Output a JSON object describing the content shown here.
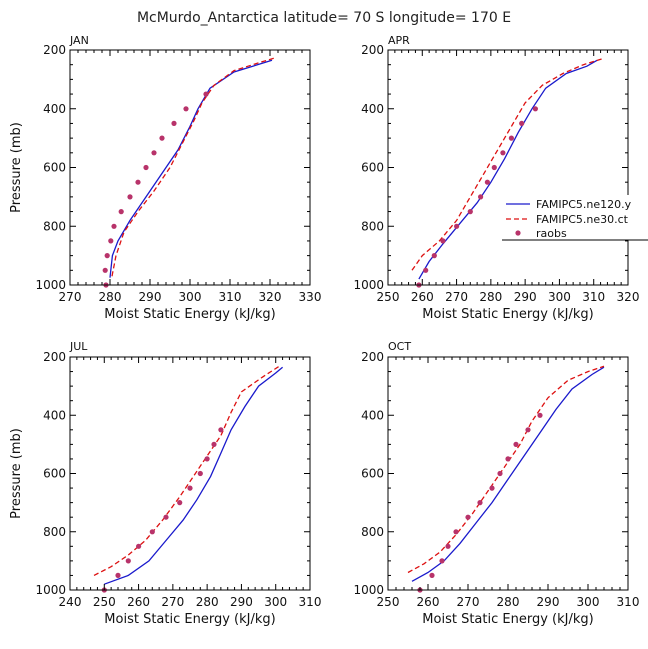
{
  "figure_title": "McMurdo_Antarctica  latitude= 70 S longitude= 170 E",
  "legend": [
    {
      "label": "FAMIPC5.ne120.y",
      "color": "#1a1acc",
      "style": "solid"
    },
    {
      "label": "FAMIPC5.ne30.ct",
      "color": "#dd1111",
      "style": "dashed"
    },
    {
      "label": "raobs",
      "color": "#b8336a",
      "style": "dots"
    }
  ],
  "chart_data": [
    {
      "type": "line",
      "panel": "JAN",
      "xlabel": "Moist Static Energy (kJ/kg)",
      "ylabel": "Pressure (mb)",
      "xlim": [
        270,
        330
      ],
      "ylim": [
        1000,
        200
      ],
      "xticks": [
        270,
        280,
        290,
        300,
        310,
        320,
        330
      ],
      "yticks": [
        200,
        400,
        600,
        800,
        1000
      ],
      "series": [
        {
          "name": "FAMIPC5.ne120.y",
          "points": [
            [
              280,
              975
            ],
            [
              280.6,
              900
            ],
            [
              282,
              850
            ],
            [
              285,
              780
            ],
            [
              289,
              700
            ],
            [
              293,
              620
            ],
            [
              297,
              540
            ],
            [
              300,
              460
            ],
            [
              302,
              400
            ],
            [
              305,
              330
            ],
            [
              311,
              275
            ],
            [
              320.5,
              235
            ]
          ]
        },
        {
          "name": "FAMIPC5.ne30.ct",
          "points": [
            [
              280.5,
              970
            ],
            [
              281.5,
              900
            ],
            [
              283.5,
              820
            ],
            [
              287,
              750
            ],
            [
              291,
              680
            ],
            [
              295,
              600
            ],
            [
              298,
              520
            ],
            [
              301,
              440
            ],
            [
              303,
              380
            ],
            [
              306,
              320
            ],
            [
              311,
              270
            ],
            [
              318,
              240
            ],
            [
              321,
              228
            ]
          ]
        },
        {
          "name": "raobs",
          "points": [
            [
              279,
              1000
            ],
            [
              278.8,
              950
            ],
            [
              279.3,
              900
            ],
            [
              280.2,
              850
            ],
            [
              281,
              800
            ],
            [
              282.8,
              750
            ],
            [
              285,
              700
            ],
            [
              287,
              650
            ],
            [
              289,
              600
            ],
            [
              291,
              550
            ],
            [
              293,
              500
            ],
            [
              296,
              450
            ],
            [
              299,
              400
            ],
            [
              304,
              350
            ]
          ]
        }
      ]
    },
    {
      "type": "line",
      "panel": "APR",
      "xlabel": "Moist Static Energy (kJ/kg)",
      "ylabel": "",
      "xlim": [
        250,
        320
      ],
      "ylim": [
        1000,
        200
      ],
      "xticks": [
        250,
        260,
        270,
        280,
        290,
        300,
        310,
        320
      ],
      "yticks": [
        200,
        400,
        600,
        800,
        1000
      ],
      "series": [
        {
          "name": "FAMIPC5.ne120.y",
          "points": [
            [
              259,
              980
            ],
            [
              262,
              920
            ],
            [
              266,
              860
            ],
            [
              271,
              790
            ],
            [
              276,
              720
            ],
            [
              280,
              650
            ],
            [
              284,
              570
            ],
            [
              288,
              480
            ],
            [
              292,
              400
            ],
            [
              296,
              330
            ],
            [
              302,
              280
            ],
            [
              308,
              255
            ],
            [
              311,
              235
            ]
          ]
        },
        {
          "name": "FAMIPC5.ne30.ct",
          "points": [
            [
              257,
              950
            ],
            [
              260,
              900
            ],
            [
              265,
              850
            ],
            [
              270,
              780
            ],
            [
              274,
              700
            ],
            [
              278,
              620
            ],
            [
              282,
              540
            ],
            [
              286,
              460
            ],
            [
              290,
              380
            ],
            [
              295,
              320
            ],
            [
              301,
              280
            ],
            [
              307,
              250
            ],
            [
              313,
              228
            ]
          ]
        },
        {
          "name": "raobs",
          "points": [
            [
              259,
              1000
            ],
            [
              261,
              950
            ],
            [
              263.5,
              900
            ],
            [
              266,
              850
            ],
            [
              270,
              800
            ],
            [
              274,
              750
            ],
            [
              277,
              700
            ],
            [
              279,
              650
            ],
            [
              281,
              600
            ],
            [
              283.5,
              550
            ],
            [
              286,
              500
            ],
            [
              289,
              450
            ],
            [
              293,
              400
            ]
          ]
        }
      ]
    },
    {
      "type": "line",
      "panel": "JUL",
      "xlabel": "Moist Static Energy (kJ/kg)",
      "ylabel": "Pressure (mb)",
      "xlim": [
        240,
        310
      ],
      "ylim": [
        1000,
        200
      ],
      "xticks": [
        240,
        250,
        260,
        270,
        280,
        290,
        300,
        310
      ],
      "yticks": [
        200,
        400,
        600,
        800,
        1000
      ],
      "series": [
        {
          "name": "FAMIPC5.ne120.y",
          "points": [
            [
              250,
              980
            ],
            [
              257,
              950
            ],
            [
              263,
              900
            ],
            [
              268,
              830
            ],
            [
              273,
              760
            ],
            [
              277,
              690
            ],
            [
              281,
              610
            ],
            [
              284,
              530
            ],
            [
              287,
              450
            ],
            [
              291,
              370
            ],
            [
              295,
              300
            ],
            [
              300,
              255
            ],
            [
              302,
              235
            ]
          ]
        },
        {
          "name": "FAMIPC5.ne30.ct",
          "points": [
            [
              247,
              950
            ],
            [
              252,
              920
            ],
            [
              257,
              880
            ],
            [
              262,
              830
            ],
            [
              267,
              760
            ],
            [
              272,
              680
            ],
            [
              276,
              610
            ],
            [
              280,
              540
            ],
            [
              284,
              470
            ],
            [
              287,
              390
            ],
            [
              290,
              320
            ],
            [
              296,
              270
            ],
            [
              301,
              232
            ]
          ]
        },
        {
          "name": "raobs",
          "points": [
            [
              250,
              1000
            ],
            [
              254,
              950
            ],
            [
              257,
              900
            ],
            [
              260,
              850
            ],
            [
              264,
              800
            ],
            [
              268,
              750
            ],
            [
              272,
              700
            ],
            [
              275,
              650
            ],
            [
              278,
              600
            ],
            [
              280,
              550
            ],
            [
              282,
              500
            ],
            [
              284,
              450
            ]
          ]
        }
      ]
    },
    {
      "type": "line",
      "panel": "OCT",
      "xlabel": "Moist Static Energy (kJ/kg)",
      "ylabel": "",
      "xlim": [
        250,
        310
      ],
      "ylim": [
        1000,
        200
      ],
      "xticks": [
        250,
        260,
        270,
        280,
        290,
        300,
        310
      ],
      "yticks": [
        200,
        400,
        600,
        800,
        1000
      ],
      "series": [
        {
          "name": "FAMIPC5.ne120.y",
          "points": [
            [
              256,
              970
            ],
            [
              260,
              940
            ],
            [
              264,
              900
            ],
            [
              268,
              840
            ],
            [
              272,
              770
            ],
            [
              276,
              700
            ],
            [
              280,
              620
            ],
            [
              284,
              540
            ],
            [
              288,
              460
            ],
            [
              292,
              380
            ],
            [
              296,
              310
            ],
            [
              301,
              260
            ],
            [
              304,
              235
            ]
          ]
        },
        {
          "name": "FAMIPC5.ne30.ct",
          "points": [
            [
              255,
              940
            ],
            [
              259,
              910
            ],
            [
              263,
              870
            ],
            [
              267,
              810
            ],
            [
              271,
              740
            ],
            [
              275,
              660
            ],
            [
              279,
              580
            ],
            [
              283,
              500
            ],
            [
              286,
              420
            ],
            [
              290,
              340
            ],
            [
              295,
              280
            ],
            [
              300,
              250
            ],
            [
              304,
              232
            ]
          ]
        },
        {
          "name": "raobs",
          "points": [
            [
              258,
              1000
            ],
            [
              261,
              950
            ],
            [
              263.5,
              900
            ],
            [
              265,
              850
            ],
            [
              267,
              800
            ],
            [
              270,
              750
            ],
            [
              273,
              700
            ],
            [
              276,
              650
            ],
            [
              278,
              600
            ],
            [
              280,
              550
            ],
            [
              282,
              500
            ],
            [
              285,
              450
            ],
            [
              288,
              400
            ]
          ]
        }
      ]
    }
  ]
}
